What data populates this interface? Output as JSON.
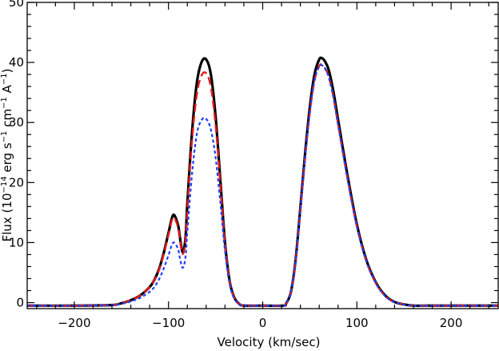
{
  "chart_data": {
    "type": "line",
    "title": "",
    "xlabel": "Velocity (km/sec)",
    "ylabel": {
      "prefix": "Flux (10",
      "exp1": "−14",
      "mid1": " erg s",
      "exp2": "−1",
      "mid2": " cm",
      "exp3": "−1",
      "mid3": " A",
      "exp4": "−1",
      "suffix": ")"
    },
    "xlim": [
      -250,
      250
    ],
    "ylim": [
      -1,
      50
    ],
    "xticks": [
      -200,
      -100,
      0,
      100,
      200
    ],
    "yticks": [
      0,
      10,
      20,
      30,
      40,
      50
    ],
    "grid": false,
    "legend": "none",
    "series": [
      {
        "color": "#000000",
        "style": "solid",
        "x": [
          -250,
          -200,
          -160,
          -150,
          -140,
          -130,
          -120,
          -115,
          -110,
          -105,
          -100,
          -95,
          -90,
          -88,
          -85,
          -82,
          -80,
          -75,
          -70,
          -65,
          -60,
          -55,
          -50,
          -45,
          -40,
          -35,
          -30,
          -25,
          -20,
          0,
          22,
          25,
          30,
          35,
          40,
          45,
          50,
          55,
          60,
          63,
          66,
          70,
          75,
          80,
          90,
          100,
          110,
          120,
          130,
          140,
          150,
          160,
          175,
          200,
          250
        ],
        "y": [
          -0.5,
          -0.5,
          -0.4,
          -0.1,
          0.4,
          1.2,
          2.6,
          3.8,
          5.6,
          8.3,
          11.6,
          14.6,
          13.0,
          11.0,
          8.4,
          10.7,
          16.5,
          28.4,
          36.5,
          40.0,
          40.5,
          38.0,
          31.0,
          20.5,
          10.0,
          3.5,
          0.8,
          -0.2,
          -0.5,
          -0.5,
          -0.5,
          -0.1,
          1.8,
          7.2,
          15.8,
          24.8,
          32.5,
          38.0,
          40.5,
          40.7,
          40.2,
          38.8,
          35.2,
          30.5,
          21.2,
          13.0,
          7.1,
          3.4,
          1.2,
          0.1,
          -0.3,
          -0.5,
          -0.5,
          -0.5,
          -0.5
        ]
      },
      {
        "color": "#e41a1c",
        "style": "dashed",
        "x": [
          -250,
          -200,
          -160,
          -150,
          -140,
          -130,
          -120,
          -115,
          -110,
          -105,
          -100,
          -95,
          -90,
          -88,
          -85,
          -82,
          -80,
          -75,
          -70,
          -65,
          -60,
          -55,
          -50,
          -45,
          -40,
          -35,
          -30,
          -25,
          -20,
          0,
          22,
          25,
          30,
          35,
          40,
          45,
          50,
          55,
          60,
          63,
          66,
          70,
          75,
          80,
          90,
          100,
          110,
          120,
          130,
          140,
          150,
          160,
          175,
          200,
          250
        ],
        "y": [
          -0.5,
          -0.5,
          -0.4,
          -0.1,
          0.4,
          1.2,
          2.6,
          3.8,
          5.5,
          8.1,
          11.3,
          14.2,
          12.6,
          10.7,
          8.1,
          10.2,
          15.6,
          27.0,
          34.6,
          37.8,
          38.2,
          35.9,
          29.6,
          19.8,
          9.7,
          3.4,
          0.7,
          -0.2,
          -0.5,
          -0.5,
          -0.5,
          -0.1,
          1.8,
          7.0,
          15.3,
          24.1,
          31.6,
          37.0,
          39.4,
          39.6,
          39.1,
          37.7,
          34.3,
          29.7,
          20.7,
          12.7,
          6.9,
          3.3,
          1.1,
          0.1,
          -0.3,
          -0.5,
          -0.5,
          -0.5,
          -0.5
        ]
      },
      {
        "color": "#1f3fff",
        "style": "dotted",
        "x": [
          -250,
          -200,
          -160,
          -150,
          -140,
          -130,
          -120,
          -115,
          -110,
          -105,
          -100,
          -95,
          -90,
          -88,
          -85,
          -82,
          -80,
          -75,
          -70,
          -65,
          -60,
          -55,
          -50,
          -45,
          -40,
          -35,
          -30,
          -25,
          -20,
          0,
          22,
          25,
          30,
          35,
          40,
          45,
          50,
          55,
          60,
          63,
          66,
          70,
          75,
          80,
          90,
          100,
          110,
          120,
          130,
          140,
          150,
          160,
          175,
          200,
          250
        ],
        "y": [
          -0.5,
          -0.5,
          -0.4,
          -0.2,
          0.2,
          0.8,
          1.8,
          2.6,
          3.9,
          5.7,
          7.9,
          10.0,
          9.0,
          7.5,
          5.8,
          7.5,
          11.8,
          21.5,
          28.0,
          30.4,
          30.6,
          28.8,
          24.2,
          16.8,
          8.6,
          3.0,
          0.6,
          -0.2,
          -0.5,
          -0.5,
          -0.5,
          -0.1,
          1.8,
          7.0,
          15.3,
          24.0,
          31.6,
          37.0,
          39.3,
          39.5,
          39.0,
          37.6,
          34.2,
          29.6,
          20.6,
          12.6,
          6.9,
          3.3,
          1.1,
          0.1,
          -0.3,
          -0.5,
          -0.5,
          -0.5,
          -0.5
        ]
      }
    ]
  }
}
